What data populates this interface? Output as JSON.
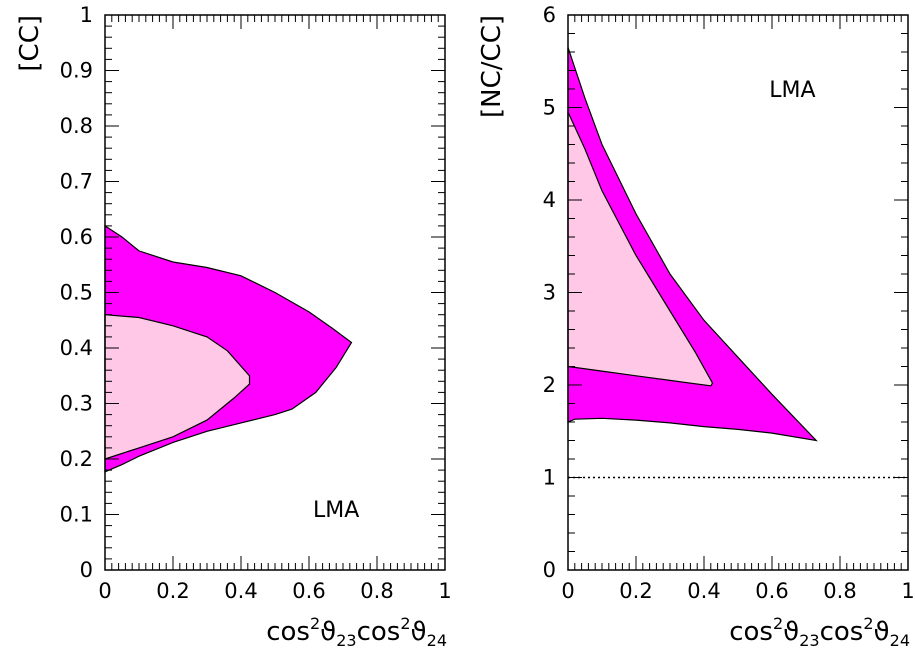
{
  "colors": {
    "outer": "#ff00ff",
    "inner": "#ffc8e6",
    "line": "#000000"
  },
  "chart_data": [
    {
      "type": "area",
      "xlabel": {
        "main": "cos",
        "sup": "2",
        "theta": "ϑ",
        "sub1": "23",
        "sub2": "24"
      },
      "ylabel": "[CC]",
      "annotation": "LMA",
      "xlim": [
        0,
        1
      ],
      "ylim": [
        0,
        1
      ],
      "xticks": [
        0,
        0.2,
        0.4,
        0.6,
        0.8,
        1
      ],
      "xtick_labels": [
        "0",
        "0.2",
        "0.4",
        "0.6",
        "0.8",
        "1"
      ],
      "yticks": [
        0,
        0.1,
        0.2,
        0.3,
        0.4,
        0.5,
        0.6,
        0.7,
        0.8,
        0.9,
        1
      ],
      "ytick_labels": [
        "0",
        "0.1",
        "0.2",
        "0.3",
        "0.4",
        "0.5",
        "0.6",
        "0.7",
        "0.8",
        "0.9",
        "1"
      ],
      "regions": [
        {
          "name": "outer",
          "points": [
            [
              0,
              0.62
            ],
            [
              0.05,
              0.6
            ],
            [
              0.1,
              0.575
            ],
            [
              0.2,
              0.555
            ],
            [
              0.3,
              0.545
            ],
            [
              0.4,
              0.53
            ],
            [
              0.5,
              0.5
            ],
            [
              0.6,
              0.465
            ],
            [
              0.67,
              0.435
            ],
            [
              0.725,
              0.41
            ],
            [
              0.68,
              0.365
            ],
            [
              0.62,
              0.32
            ],
            [
              0.55,
              0.29
            ],
            [
              0.5,
              0.28
            ],
            [
              0.4,
              0.265
            ],
            [
              0.3,
              0.25
            ],
            [
              0.2,
              0.23
            ],
            [
              0.1,
              0.205
            ],
            [
              0.05,
              0.19
            ],
            [
              0,
              0.177
            ]
          ]
        },
        {
          "name": "inner",
          "points": [
            [
              0,
              0.46
            ],
            [
              0.1,
              0.455
            ],
            [
              0.2,
              0.44
            ],
            [
              0.3,
              0.42
            ],
            [
              0.36,
              0.395
            ],
            [
              0.425,
              0.35
            ],
            [
              0.425,
              0.335
            ],
            [
              0.38,
              0.31
            ],
            [
              0.3,
              0.27
            ],
            [
              0.2,
              0.24
            ],
            [
              0.1,
              0.22
            ],
            [
              0,
              0.2
            ]
          ]
        }
      ]
    },
    {
      "type": "area",
      "xlabel": {
        "main": "cos",
        "sup": "2",
        "theta": "ϑ",
        "sub1": "23",
        "sub2": "24"
      },
      "ylabel": "[NC/CC]",
      "annotation": "LMA",
      "xlim": [
        0,
        1
      ],
      "ylim": [
        0,
        6
      ],
      "xticks": [
        0,
        0.2,
        0.4,
        0.6,
        0.8,
        1
      ],
      "xtick_labels": [
        "0",
        "0.2",
        "0.4",
        "0.6",
        "0.8",
        "1"
      ],
      "yticks": [
        0,
        1,
        2,
        3,
        4,
        5,
        6
      ],
      "ytick_labels": [
        "0",
        "1",
        "2",
        "3",
        "4",
        "5",
        "6"
      ],
      "reference_line": {
        "y": 1,
        "style": "dotted"
      },
      "regions": [
        {
          "name": "outer",
          "points": [
            [
              0,
              5.65
            ],
            [
              0.05,
              5.1
            ],
            [
              0.1,
              4.6
            ],
            [
              0.2,
              3.85
            ],
            [
              0.3,
              3.2
            ],
            [
              0.4,
              2.7
            ],
            [
              0.5,
              2.3
            ],
            [
              0.6,
              1.9
            ],
            [
              0.73,
              1.4
            ],
            [
              0.6,
              1.48
            ],
            [
              0.5,
              1.52
            ],
            [
              0.4,
              1.55
            ],
            [
              0.3,
              1.59
            ],
            [
              0.2,
              1.62
            ],
            [
              0.1,
              1.64
            ],
            [
              0.02,
              1.63
            ],
            [
              0,
              1.6
            ]
          ]
        },
        {
          "name": "inner",
          "points": [
            [
              0,
              4.95
            ],
            [
              0.05,
              4.55
            ],
            [
              0.1,
              4.1
            ],
            [
              0.2,
              3.4
            ],
            [
              0.3,
              2.8
            ],
            [
              0.375,
              2.35
            ],
            [
              0.425,
              2.02
            ],
            [
              0.42,
              1.99
            ],
            [
              0.3,
              2.05
            ],
            [
              0.2,
              2.1
            ],
            [
              0.1,
              2.15
            ],
            [
              0,
              2.2
            ]
          ]
        }
      ]
    }
  ]
}
